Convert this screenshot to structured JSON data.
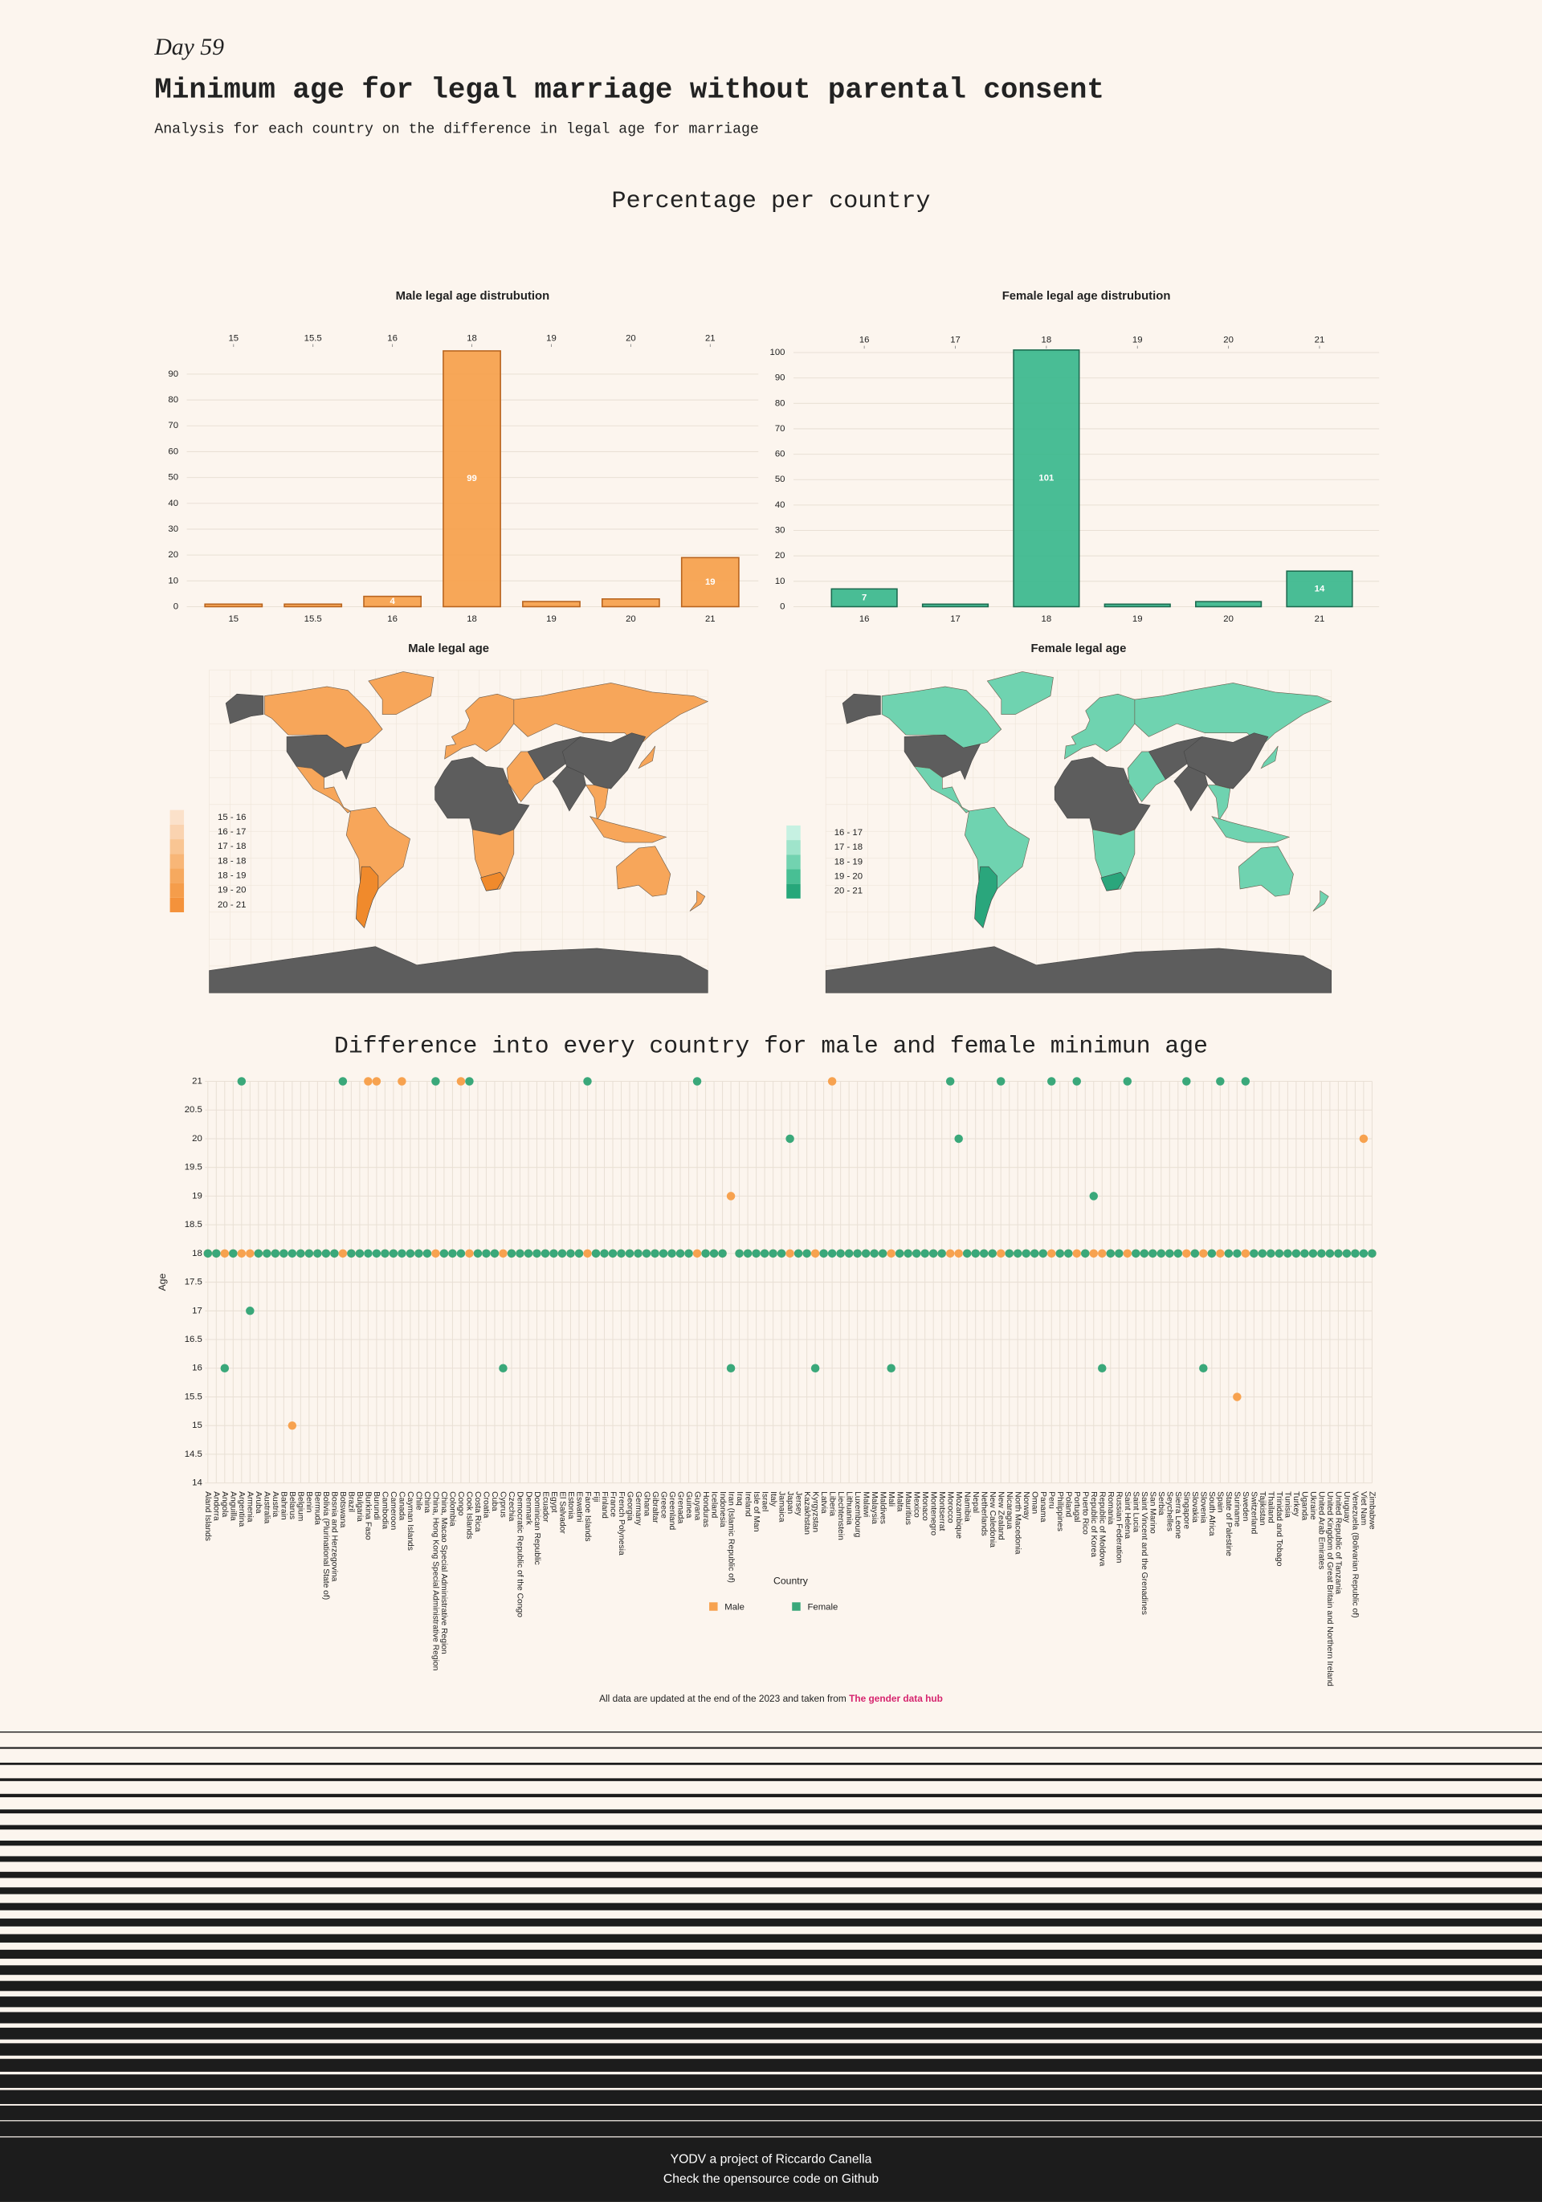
{
  "header": {
    "day": "Day 59",
    "title": "Minimum age for legal marriage without parental consent",
    "subtitle": "Analysis for each country on the difference in legal age for marriage",
    "section_title": "Percentage per country"
  },
  "chart_data": [
    {
      "type": "bar",
      "title": "Male legal age distrubution",
      "categories": [
        "15",
        "15.5",
        "16",
        "18",
        "19",
        "20",
        "21"
      ],
      "values": [
        1,
        1,
        4,
        99,
        2,
        3,
        19
      ],
      "color": "#f7a24f",
      "edgecolor": "#b8641f",
      "ylim": [
        0,
        100
      ],
      "yticks": [
        0,
        10,
        20,
        30,
        40,
        50,
        60,
        70,
        80,
        90
      ],
      "grid": true
    },
    {
      "type": "bar",
      "title": "Female legal age distrubution",
      "categories": [
        "16",
        "17",
        "18",
        "19",
        "20",
        "21"
      ],
      "values": [
        7,
        1,
        101,
        1,
        2,
        14
      ],
      "color": "#3fb98f",
      "edgecolor": "#1d6b50",
      "ylim": [
        0,
        101
      ],
      "yticks": [
        0,
        10,
        20,
        30,
        40,
        50,
        60,
        70,
        80,
        90,
        100
      ],
      "grid": true
    },
    {
      "type": "dot",
      "title": "Difference into every country for male and female minimun age",
      "x_label": "Country",
      "y_label": "Age",
      "categories": [
        "Aland Islands",
        "Andorra",
        "Angola",
        "Anguilla",
        "Argentina",
        "Armenia",
        "Aruba",
        "Australia",
        "Austria",
        "Bahrain",
        "Belarus",
        "Belgium",
        "Benin",
        "Bermuda",
        "Bolivia (Plurinational State of)",
        "Bosnia and Herzegovina",
        "Botswana",
        "Brazil",
        "Bulgaria",
        "Burkina Faso",
        "Burundi",
        "Cambodia",
        "Cameroon",
        "Canada",
        "Cayman Islands",
        "Chile",
        "China",
        "China, Hong Kong Special Administrative Region",
        "China, Macao Special Administrative Region",
        "Colombia",
        "Congo",
        "Cook Islands",
        "Costa Rica",
        "Croatia",
        "Cuba",
        "Cyprus",
        "Czechia",
        "Democratic Republic of the Congo",
        "Denmark",
        "Dominican Republic",
        "Ecuador",
        "Egypt",
        "El Salvador",
        "Estonia",
        "Eswatini",
        "Faroe Islands",
        "Fiji",
        "Finland",
        "France",
        "French Polynesia",
        "Georgia",
        "Germany",
        "Ghana",
        "Gibraltar",
        "Greece",
        "Greenland",
        "Grenada",
        "Guinea",
        "Guyana",
        "Honduras",
        "Iceland",
        "Indonesia",
        "Iran (Islamic Republic of)",
        "Iraq",
        "Ireland",
        "Isle of Man",
        "Israel",
        "Italy",
        "Jamaica",
        "Japan",
        "Jersey",
        "Kazakhstan",
        "Kyrgyzstan",
        "Latvia",
        "Liberia",
        "Liechtenstein",
        "Lithuania",
        "Luxembourg",
        "Malawi",
        "Malaysia",
        "Maldives",
        "Mali",
        "Malta",
        "Mauritius",
        "Mexico",
        "Monaco",
        "Montenegro",
        "Montserrat",
        "Morocco",
        "Mozambique",
        "Namibia",
        "Nepal",
        "Netherlands",
        "New Caledonia",
        "New Zealand",
        "Nicaragua",
        "North Macedonia",
        "Norway",
        "Oman",
        "Panama",
        "Peru",
        "Philippines",
        "Poland",
        "Portugal",
        "Puerto Rico",
        "Republic of Korea",
        "Republic of Moldova",
        "Romania",
        "Russian Federation",
        "Saint Helena",
        "Saint Lucia",
        "Saint Vincent and the Grenadines",
        "San Marino",
        "Serbia",
        "Seychelles",
        "Sierra Leone",
        "Singapore",
        "Slovakia",
        "Slovenia",
        "South Africa",
        "Spain",
        "State of Palestine",
        "Suriname",
        "Sweden",
        "Switzerland",
        "Tajikistan",
        "Thailand",
        "Trinidad and Tobago",
        "Tunisia",
        "Turkey",
        "Uganda",
        "Ukraine",
        "United Arab Emirates",
        "United Kingdom of Great Britain and Northern Ireland",
        "United Republic of Tanzania",
        "Uruguay",
        "Venezuela (Bolivarian Republic of)",
        "Viet Nam",
        "Zimbabwe"
      ],
      "series": [
        {
          "name": "Male",
          "color": "#f7a24f",
          "values": [
            18,
            18,
            18,
            18,
            18,
            18,
            18,
            18,
            18,
            18,
            15,
            18,
            18,
            18,
            18,
            18,
            18,
            18,
            18,
            21,
            21,
            18,
            18,
            21,
            18,
            18,
            18,
            18,
            18,
            18,
            21,
            18,
            18,
            18,
            18,
            18,
            18,
            18,
            18,
            18,
            18,
            18,
            18,
            18,
            18,
            18,
            18,
            18,
            18,
            18,
            18,
            18,
            18,
            18,
            18,
            18,
            18,
            18,
            18,
            18,
            18,
            18,
            19,
            18,
            18,
            18,
            18,
            18,
            18,
            18,
            18,
            18,
            18,
            18,
            21,
            18,
            18,
            18,
            18,
            18,
            18,
            18,
            18,
            18,
            18,
            18,
            18,
            18,
            18,
            18,
            18,
            18,
            18,
            18,
            18,
            18,
            18,
            18,
            18,
            18,
            18,
            18,
            18,
            18,
            18,
            18,
            18,
            18,
            18,
            18,
            18,
            18,
            18,
            18,
            18,
            18,
            18,
            18,
            18,
            18,
            18,
            18,
            15.5,
            18,
            18,
            18,
            18,
            18,
            18,
            18,
            18,
            18,
            18,
            18,
            18,
            18,
            18,
            20,
            18
          ]
        },
        {
          "name": "Female",
          "color": "#3aa87a",
          "values": [
            18,
            18,
            16,
            18,
            21,
            17,
            18,
            18,
            18,
            18,
            18,
            18,
            18,
            18,
            18,
            18,
            21,
            18,
            18,
            18,
            18,
            18,
            18,
            18,
            18,
            18,
            18,
            21,
            18,
            18,
            18,
            21,
            18,
            18,
            18,
            16,
            18,
            18,
            18,
            18,
            18,
            18,
            18,
            18,
            18,
            21,
            18,
            18,
            18,
            18,
            18,
            18,
            18,
            18,
            18,
            18,
            18,
            18,
            21,
            18,
            18,
            18,
            16,
            18,
            18,
            18,
            18,
            18,
            18,
            20,
            18,
            18,
            16,
            18,
            18,
            18,
            18,
            18,
            18,
            18,
            18,
            16,
            18,
            18,
            18,
            18,
            18,
            18,
            21,
            20,
            18,
            18,
            18,
            18,
            21,
            18,
            18,
            18,
            18,
            18,
            21,
            18,
            18,
            21,
            18,
            19,
            16,
            18,
            18,
            21,
            18,
            18,
            18,
            18,
            18,
            18,
            21,
            18,
            16,
            18,
            21,
            18,
            18,
            21,
            18,
            18,
            18,
            18,
            18,
            18,
            18,
            18,
            18,
            18,
            18,
            18,
            18,
            18,
            18
          ]
        }
      ],
      "ylim": [
        14,
        21
      ],
      "yticks": [
        14,
        14.5,
        15,
        15.5,
        16,
        16.5,
        17,
        17.5,
        18,
        18.5,
        19,
        19.5,
        20,
        20.5,
        21
      ],
      "grid": true
    }
  ],
  "maps": [
    {
      "title": "Male legal age",
      "legend": [
        "15 - 16",
        "16 - 17",
        "17 - 18",
        "18 - 18",
        "18 - 19",
        "19 - 20",
        "20 - 21"
      ],
      "colors": [
        "#fbe1ca",
        "#fad3b0",
        "#f9c593",
        "#f8b677",
        "#f6a95f",
        "#f59d4b",
        "#f4923b"
      ]
    },
    {
      "title": "Female legal age",
      "legend": [
        "16 - 17",
        "17 - 18",
        "18 - 19",
        "19 - 20",
        "20 - 21"
      ],
      "colors": [
        "#c6f1e2",
        "#9fe4cb",
        "#72d3b0",
        "#48bf94",
        "#26a77a"
      ]
    }
  ],
  "footer": {
    "note": "All data are updated at the end of the 2023 and taken from",
    "link": "The gender data hub",
    "credit": "YODV a project of Riccardo Canella",
    "source": "Check the opensource code on Github"
  }
}
